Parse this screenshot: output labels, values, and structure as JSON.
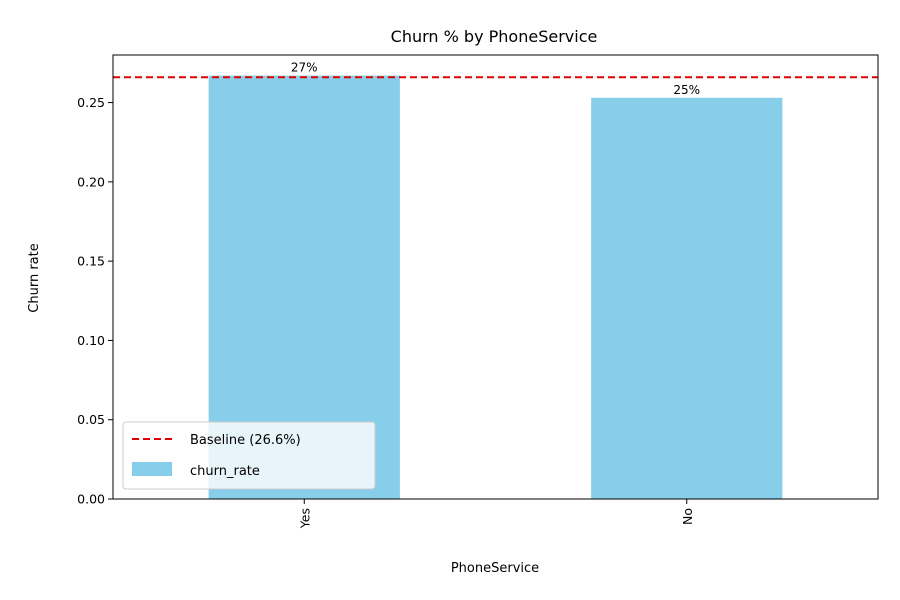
{
  "chart_data": {
    "type": "bar",
    "title": "Churn % by PhoneService",
    "xlabel": "PhoneService",
    "ylabel": "Churn rate",
    "categories": [
      "Yes",
      "No"
    ],
    "series": [
      {
        "name": "churn_rate",
        "values": [
          0.267,
          0.253
        ],
        "color": "#87CEEB"
      }
    ],
    "data_labels": [
      "27%",
      "25%"
    ],
    "baseline": {
      "label": "Baseline (26.6%)",
      "value": 0.266,
      "color": "#e00000",
      "style": "dashed"
    },
    "ylim": [
      0,
      0.28
    ],
    "yticks": [
      0.0,
      0.05,
      0.1,
      0.15,
      0.2,
      0.25
    ],
    "ytick_labels": [
      "0.00",
      "0.05",
      "0.10",
      "0.15",
      "0.20",
      "0.25"
    ],
    "xtick_rotation": 90,
    "legend_position": "lower-left",
    "grid": false
  }
}
